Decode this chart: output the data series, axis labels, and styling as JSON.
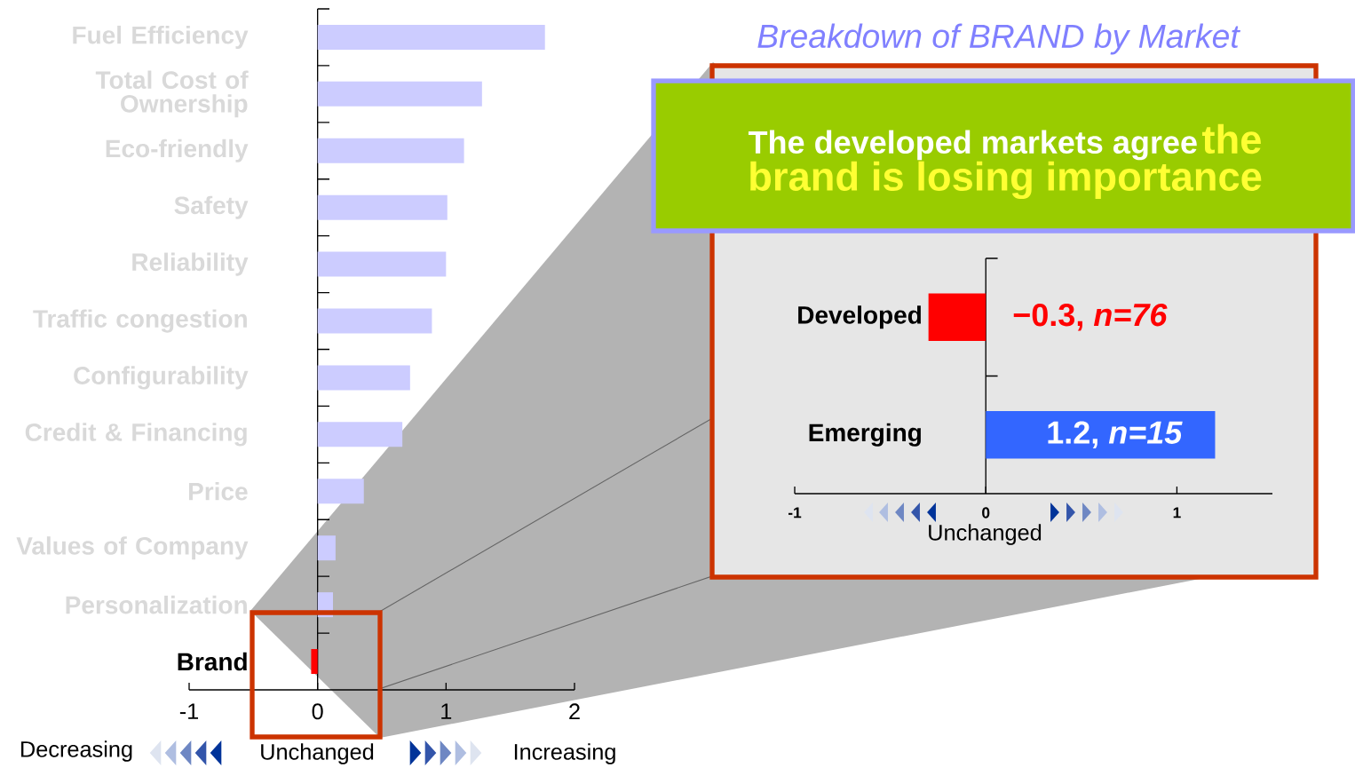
{
  "chart_data": [
    {
      "type": "bar",
      "orientation": "horizontal",
      "categories": [
        "Fuel Efficiency",
        "Total Cost of Ownership",
        "Eco-friendly",
        "Safety",
        "Reliability",
        "Traffic congestion",
        "Configurability",
        "Credit & Financing",
        "Price",
        "Values of Company",
        "Personalization",
        "Brand"
      ],
      "values": [
        1.77,
        1.28,
        1.14,
        1.01,
        1.0,
        0.89,
        0.72,
        0.66,
        0.36,
        0.14,
        0.12,
        -0.05
      ],
      "colors": [
        "#ccccff",
        "#ccccff",
        "#ccccff",
        "#ccccff",
        "#ccccff",
        "#ccccff",
        "#ccccff",
        "#ccccff",
        "#ccccff",
        "#ccccff",
        "#ccccff",
        "#ff0000"
      ],
      "xlim": [
        -1,
        2
      ],
      "xticks": [
        -1,
        0,
        1,
        2
      ],
      "annotations": [
        "Decreasing",
        "Unchanged",
        "Increasing"
      ]
    },
    {
      "type": "bar",
      "orientation": "horizontal",
      "title": "Breakdown of BRAND by Market",
      "categories": [
        "Developed",
        "Emerging"
      ],
      "values": [
        -0.3,
        1.2
      ],
      "colors": [
        "#ff0000",
        "#3366ff"
      ],
      "value_labels": [
        "−0.3, *n=76*",
        "1.2, *n=15*"
      ],
      "xlim": [
        -1,
        1.5
      ],
      "xticks": [
        -1,
        0,
        1
      ],
      "annotations": [
        "Unchanged",
        "The developed markets agree",
        "the brand is losing importance"
      ]
    }
  ]
}
